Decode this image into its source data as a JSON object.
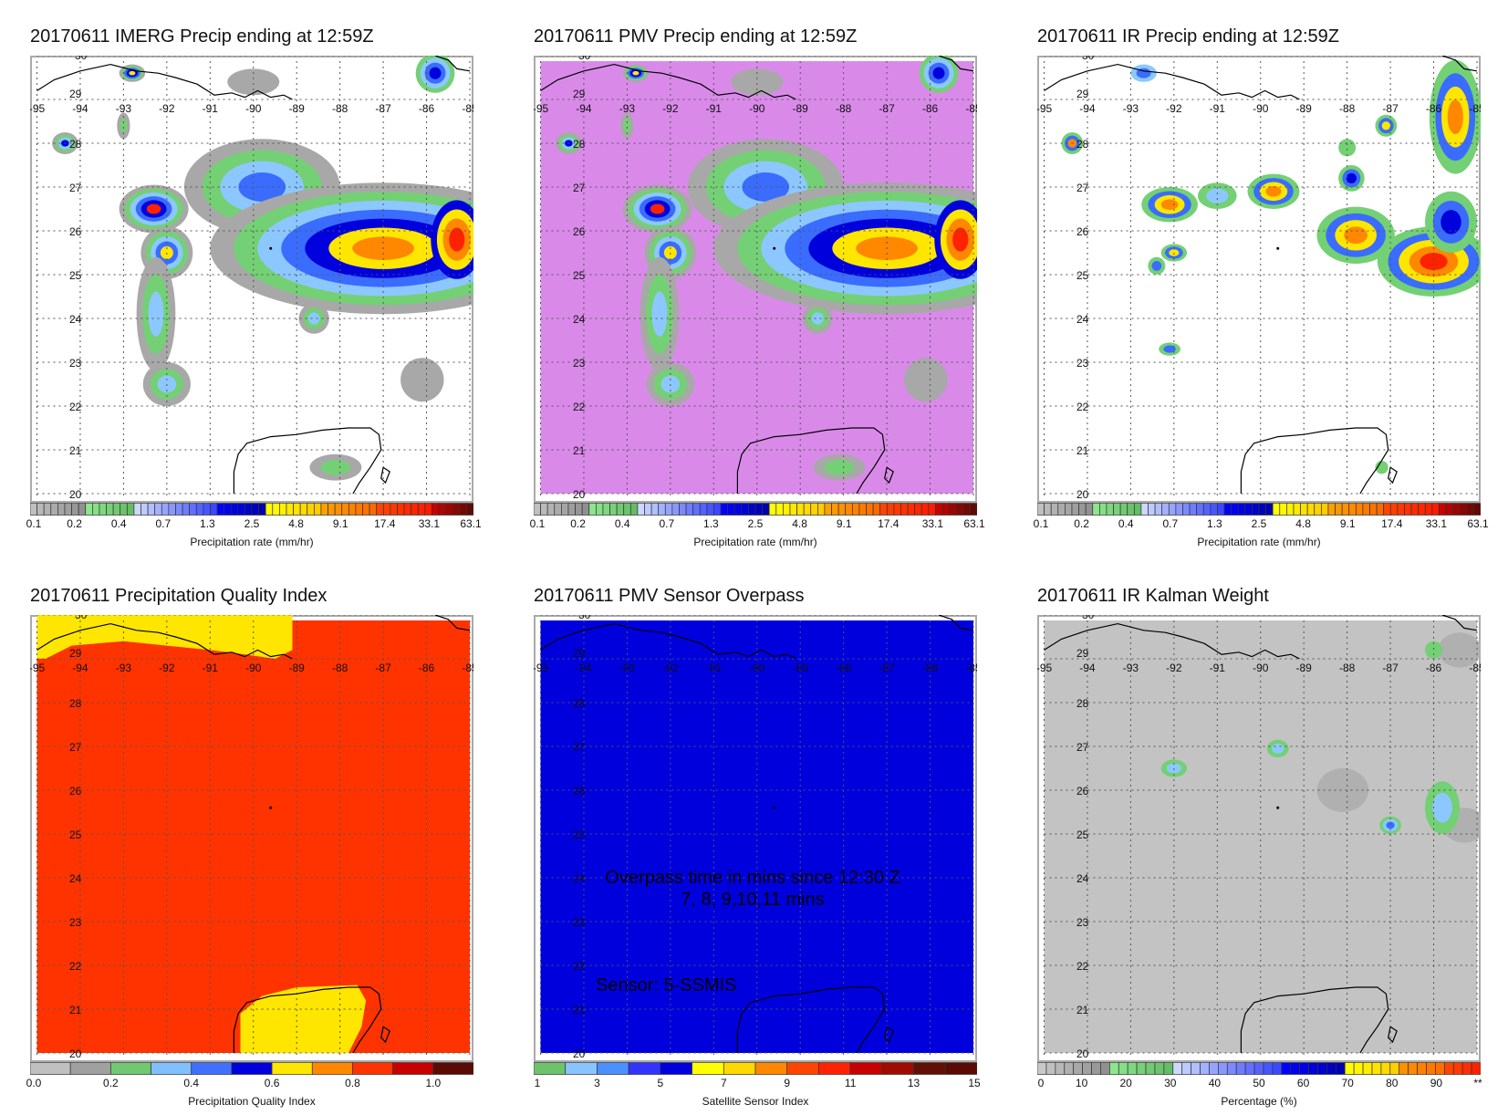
{
  "panels": [
    {
      "id": "imerg",
      "title": "20170611 IMERG Precip ending at 12:59Z",
      "background": "#ffffff",
      "colorbar": "precip",
      "caption": "Precipitation rate (mm/hr)"
    },
    {
      "id": "pmv",
      "title": "20170611 PMV Precip ending at 12:59Z",
      "background": "#d98ae9",
      "colorbar": "precip",
      "caption": "Precipitation rate (mm/hr)"
    },
    {
      "id": "ir",
      "title": "20170611 IR Precip ending at 12:59Z",
      "background": "#ffffff",
      "colorbar": "precip",
      "caption": "Precipitation rate (mm/hr)"
    },
    {
      "id": "quality",
      "title": "20170611 Precipitation Quality Index",
      "background": "#ff3300",
      "colorbar": "quality",
      "caption": "Precipitation Quality Index"
    },
    {
      "id": "sensor",
      "title": "20170611 PMV Sensor Overpass",
      "background": "#0000dd",
      "colorbar": "sensor",
      "caption": "Satellite Sensor Index",
      "annotations": [
        "Overpass time in mins since 12:30 Z",
        "7, 8, 9,10,11 mins",
        "Sensor:   5-SSMIS"
      ]
    },
    {
      "id": "kalman",
      "title": "20170611 IR Kalman Weight",
      "background": "#c3c3c3",
      "colorbar": "percent",
      "caption": "Percentage (%)"
    }
  ],
  "axes": {
    "lon_labels": [
      "-95",
      "-94",
      "-93",
      "-92",
      "-91",
      "-90",
      "-89",
      "-88",
      "-87",
      "-86",
      "-85"
    ],
    "lat_labels": [
      "30",
      "29",
      "28",
      "27",
      "26",
      "25",
      "24",
      "23",
      "22",
      "21",
      "20"
    ]
  },
  "colorbars": {
    "precip": {
      "ticks": [
        "0.1",
        "0.2",
        "0.4",
        "0.7",
        "1.3",
        "2.5",
        "4.8",
        "9.1",
        "17.4",
        "33.1",
        "63.1"
      ]
    },
    "quality": {
      "ticks": [
        "0.0",
        "0.2",
        "0.4",
        "0.6",
        "0.8",
        "1.0"
      ],
      "colors": [
        "#c0c0c0",
        "#a0a0a0",
        "#70c870",
        "#80c0ff",
        "#4070ff",
        "#0000dd",
        "#ffe600",
        "#ff8800",
        "#ff3300",
        "#c80000",
        "#5a0c04"
      ]
    },
    "sensor": {
      "ticks": [
        "1",
        "3",
        "5",
        "7",
        "9",
        "11",
        "13",
        "15"
      ],
      "colors": [
        "#6cc36c",
        "#88c4ff",
        "#4a90ff",
        "#3333ff",
        "#0000dd",
        "#ffff00",
        "#ffd800",
        "#ff8800",
        "#ff4400",
        "#ff2200",
        "#c80000",
        "#a00a00",
        "#601006",
        "#5a0c04"
      ]
    },
    "percent": {
      "ticks": [
        "0",
        "10",
        "20",
        "30",
        "40",
        "50",
        "60",
        "70",
        "80",
        "90",
        "**"
      ]
    }
  },
  "palette": {
    "grey": "#a8a8a8",
    "green": "#74d074",
    "lightblue": "#8cc8ff",
    "blue": "#3a6cff",
    "darkblue": "#0000dd",
    "yellow": "#ffe600",
    "orange": "#ff8800",
    "red": "#ff2200",
    "violet": "#d98ae9"
  }
}
